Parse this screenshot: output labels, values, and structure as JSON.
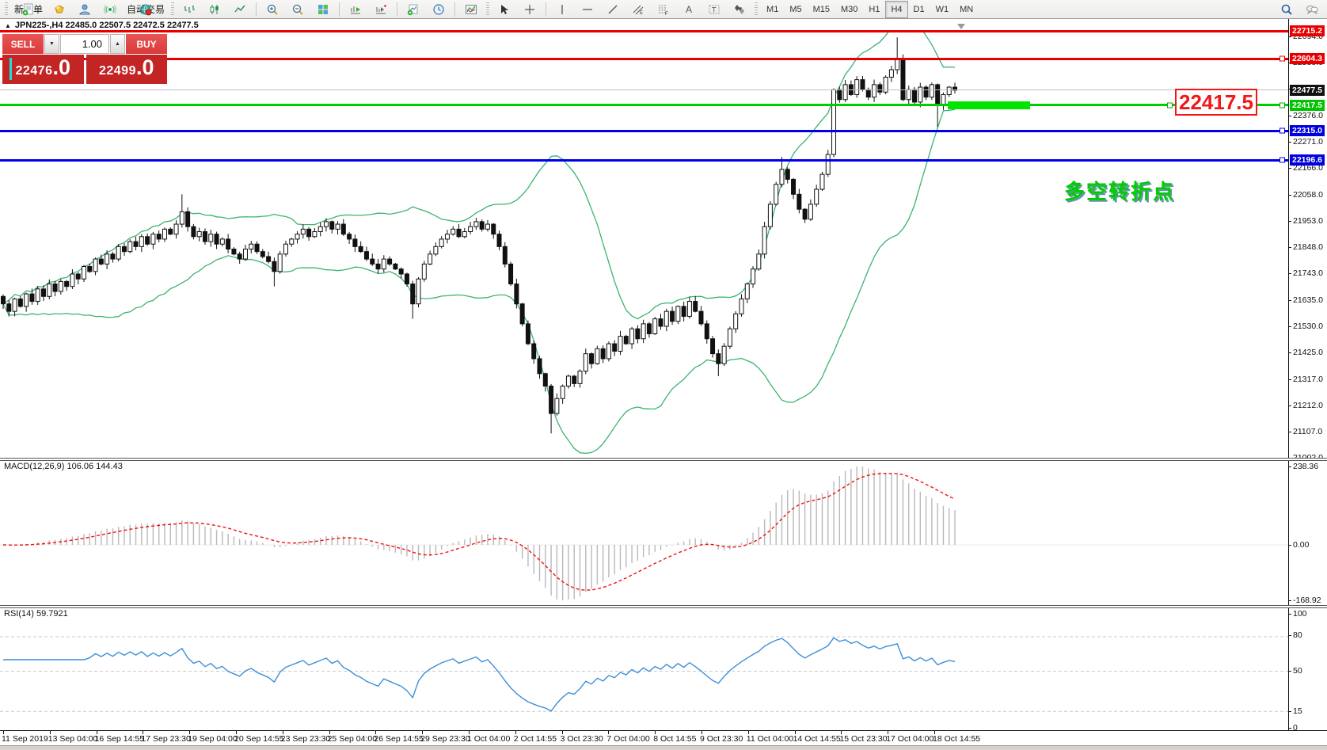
{
  "toolbar": {
    "new_order_label": "新订单",
    "autotrading_label": "自动交易",
    "timeframes": [
      "M1",
      "M5",
      "M15",
      "M30",
      "H1",
      "H4",
      "D1",
      "W1",
      "MN"
    ],
    "active_timeframe": "H4"
  },
  "chart": {
    "collapse_glyph": "▲",
    "title": "JPN225-,H4  22485.0 22507.5 22472.5 22477.5",
    "trade_panel": {
      "sell_label": "SELL",
      "buy_label": "BUY",
      "volume": "1.00",
      "spin_down": "▼",
      "spin_up": "▲",
      "sell_price_main": "22476",
      "sell_price_big": ".0",
      "buy_price_main": "22499",
      "buy_price_big": ".0"
    },
    "annotation_price": "22417.5",
    "annotation_cn": "多空转折点",
    "axis_badges": [
      {
        "text": "22715.2",
        "value": 22715.2,
        "color": "#e80000"
      },
      {
        "text": "22604.3",
        "value": 22604.3,
        "color": "#e80000"
      },
      {
        "text": "22477.5",
        "value": 22477.5,
        "color": "#111111"
      },
      {
        "text": "22417.5",
        "value": 22417.5,
        "color": "#00c400"
      },
      {
        "text": "22315.0",
        "value": 22315.0,
        "color": "#0000dd"
      },
      {
        "text": "22196.6",
        "value": 22196.6,
        "color": "#0000dd"
      }
    ],
    "axis_ticks": [
      "22694.0",
      "22589.0",
      "22484.0",
      "22376.0",
      "22271.0",
      "22166.0",
      "22058.0",
      "21953.0",
      "21848.0",
      "21743.0",
      "21635.0",
      "21530.0",
      "21425.0",
      "21317.0",
      "21212.0",
      "21107.0",
      "21002.0"
    ]
  },
  "macd": {
    "label": "MACD(12,26,9) 106.06 144.43",
    "axis": [
      "238.36",
      "0.00",
      "-168.92"
    ]
  },
  "rsi": {
    "label": "RSI(14) 59.7921",
    "axis": [
      "100",
      "80",
      "50",
      "15",
      "0"
    ],
    "dashed_levels": [
      80,
      50,
      15
    ]
  },
  "timeline": [
    "11 Sep 2019",
    "13 Sep 04:00",
    "16 Sep 14:55",
    "17 Sep 23:30",
    "19 Sep 04:00",
    "20 Sep 14:55",
    "23 Sep 23:30",
    "25 Sep 04:00",
    "26 Sep 14:55",
    "29 Sep 23:30",
    "1 Oct 04:00",
    "2 Oct 14:55",
    "3 Oct 23:30",
    "7 Oct 04:00",
    "8 Oct 14:55",
    "9 Oct 23:30",
    "11 Oct 04:00",
    "14 Oct 14:55",
    "15 Oct 23:30",
    "17 Oct 04:00",
    "18 Oct 14:55"
  ],
  "chart_data": {
    "type": "candlestick",
    "symbol": "JPN225-",
    "period": "H4",
    "ohlc_readout": {
      "open": 22485.0,
      "high": 22507.5,
      "low": 22472.5,
      "close": 22477.5
    },
    "indicators": [
      "Bollinger Bands(20,2)",
      "MACD(12,26,9)",
      "RSI(14)"
    ],
    "horizontal_levels": [
      22715.2,
      22604.3,
      22417.5,
      22315.0,
      22196.6
    ],
    "current_price": 22477.5,
    "axis_range": {
      "top_price": 22719,
      "bottom_price": 20996
    },
    "macd_range": {
      "max": 238.36,
      "min": -168.92
    },
    "candles": {
      "first_open": 21650,
      "close": [
        21620,
        21590,
        21640,
        21610,
        21660,
        21630,
        21680,
        21650,
        21700,
        21670,
        21710,
        21690,
        21740,
        21720,
        21770,
        21750,
        21800,
        21780,
        21820,
        21800,
        21850,
        21830,
        21870,
        21850,
        21890,
        21860,
        21900,
        21880,
        21920,
        21900,
        21940,
        21990,
        21930,
        21890,
        21910,
        21870,
        21900,
        21860,
        21880,
        21840,
        21820,
        21800,
        21840,
        21860,
        21830,
        21810,
        21790,
        21750,
        21820,
        21860,
        21880,
        21900,
        21920,
        21890,
        21910,
        21930,
        21950,
        21920,
        21940,
        21900,
        21880,
        21850,
        21830,
        21800,
        21780,
        21760,
        21800,
        21780,
        21760,
        21740,
        21700,
        21620,
        21720,
        21780,
        21820,
        21850,
        21880,
        21900,
        21920,
        21890,
        21910,
        21930,
        21950,
        21920,
        21940,
        21900,
        21850,
        21780,
        21700,
        21620,
        21540,
        21460,
        21400,
        21340,
        21290,
        21180,
        21240,
        21290,
        21330,
        21300,
        21350,
        21420,
        21380,
        21440,
        21400,
        21460,
        21430,
        21490,
        21460,
        21520,
        21480,
        21540,
        21500,
        21560,
        21530,
        21590,
        21550,
        21610,
        21570,
        21630,
        21590,
        21540,
        21480,
        21420,
        21380,
        21450,
        21520,
        21580,
        21640,
        21700,
        21760,
        21820,
        21930,
        22020,
        22100,
        22160,
        22120,
        22060,
        22000,
        21960,
        22020,
        22080,
        22140,
        22220,
        22480,
        22440,
        22500,
        22460,
        22520,
        22480,
        22450,
        22500,
        22470,
        22530,
        22560,
        22600,
        22440,
        22480,
        22430,
        22490,
        22450,
        22500,
        22420,
        22460,
        22490,
        22477.5
      ],
      "wick_high_overrides": {
        "31": 22060,
        "135": 22210,
        "155": 22690
      },
      "wick_low_overrides": {
        "47": 21690,
        "71": 21560,
        "95": 21100,
        "124": 21330,
        "162": 22330
      }
    }
  }
}
